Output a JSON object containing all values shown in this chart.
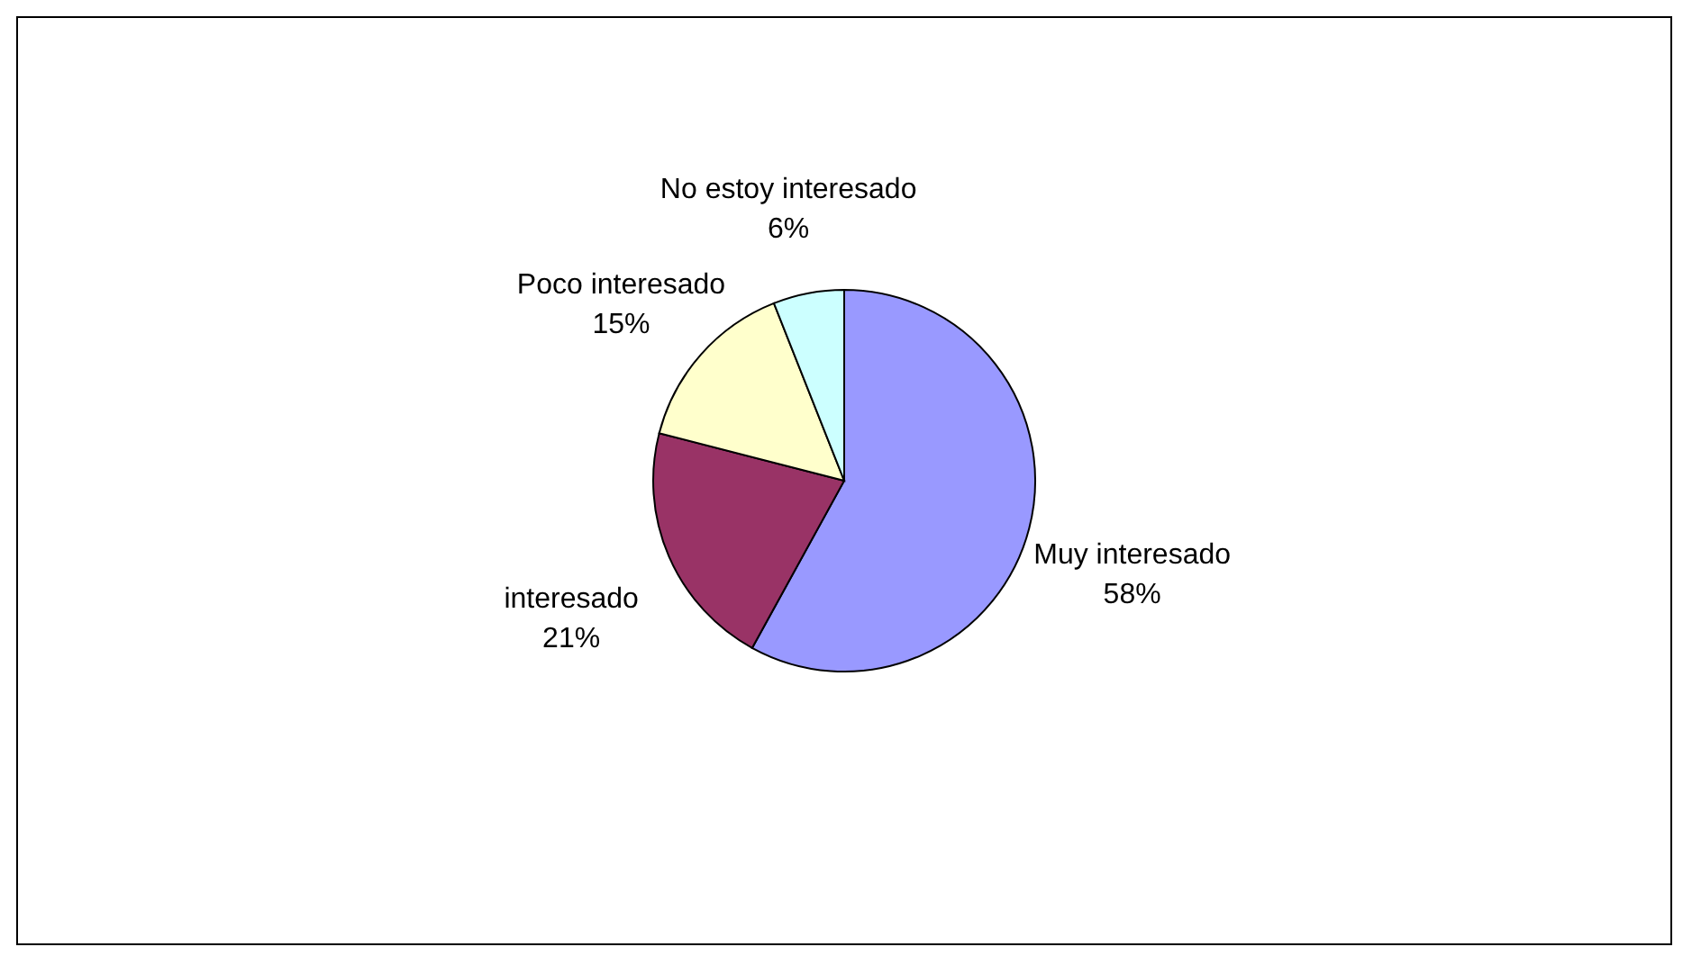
{
  "chart_data": {
    "type": "pie",
    "categories": [
      "Muy interesado",
      "interesado",
      "Poco interesado",
      "No estoy interesado"
    ],
    "values": [
      58,
      21,
      15,
      6
    ],
    "colors": [
      "#9999ff",
      "#993366",
      "#ffffcc",
      "#ccffff"
    ],
    "value_labels": [
      "58%",
      "21%",
      "15%",
      "6%"
    ]
  }
}
